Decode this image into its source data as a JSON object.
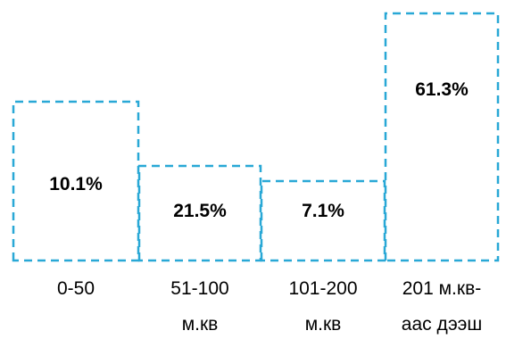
{
  "chart_data": {
    "type": "bar",
    "categories": [
      [
        "0-50"
      ],
      [
        "51-100",
        "м.кв"
      ],
      [
        "101-200",
        "м.кв"
      ],
      [
        "201 м.кв-",
        "аас дээш"
      ]
    ],
    "values": [
      10.1,
      21.5,
      7.1,
      61.3
    ],
    "value_labels": [
      "10.1%",
      "21.5%",
      "7.1%",
      "61.3%"
    ],
    "title": "",
    "xlabel": "",
    "ylabel": "",
    "grid": false,
    "legend": "none",
    "bar_style": "dashed-outline",
    "color": "#29a8d6"
  }
}
